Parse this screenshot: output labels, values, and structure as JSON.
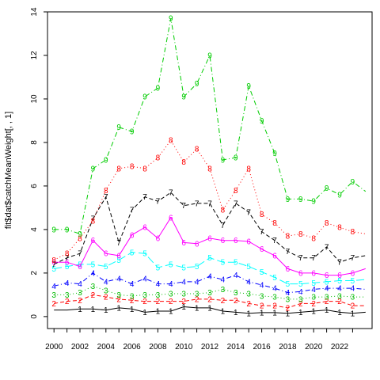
{
  "chart_data": {
    "type": "line",
    "title": "",
    "xlabel": "",
    "ylabel": "fit$dat$catchMeanWeight[, , 1]",
    "xlim": [
      1999.5,
      2024.5
    ],
    "ylim": [
      -0.55,
      14
    ],
    "x_ticks": [
      2000,
      2002,
      2004,
      2006,
      2008,
      2010,
      2012,
      2014,
      2016,
      2018,
      2020,
      2022
    ],
    "y_ticks": [
      0,
      2,
      4,
      6,
      8,
      10,
      12,
      14
    ],
    "x": [
      2000,
      2001,
      2002,
      2003,
      2004,
      2005,
      2006,
      2007,
      2008,
      2009,
      2010,
      2011,
      2012,
      2013,
      2014,
      2015,
      2016,
      2017,
      2018,
      2019,
      2020,
      2021,
      2022,
      2023,
      2024
    ],
    "series": [
      {
        "name": "1",
        "color": "#000000",
        "dash": "",
        "label_start": 2,
        "values": [
          0.3,
          0.3,
          0.35,
          0.35,
          0.3,
          0.4,
          0.35,
          0.2,
          0.25,
          0.25,
          0.45,
          0.4,
          0.4,
          0.25,
          0.2,
          0.15,
          0.18,
          0.18,
          0.15,
          0.2,
          0.25,
          0.3,
          0.2,
          0.15,
          0.2
        ]
      },
      {
        "name": "2",
        "color": "#ff0000",
        "dash": "5,3",
        "label_start": 0,
        "values": [
          0.6,
          0.7,
          0.75,
          1.0,
          0.9,
          0.8,
          0.75,
          0.7,
          0.7,
          0.7,
          0.7,
          0.8,
          0.8,
          0.75,
          0.75,
          0.6,
          0.5,
          0.5,
          0.4,
          0.6,
          0.6,
          0.7,
          0.7,
          0.5,
          0.5
        ]
      },
      {
        "name": "3",
        "color": "#00bb00",
        "dash": "1,3",
        "label_start": 0,
        "values": [
          1.0,
          1.0,
          1.1,
          1.4,
          1.2,
          1.0,
          0.95,
          1.0,
          1.0,
          1.05,
          1.05,
          1.05,
          1.1,
          1.25,
          1.1,
          1.05,
          0.95,
          0.9,
          0.8,
          0.8,
          0.9,
          0.9,
          0.95,
          0.9,
          0.9
        ]
      },
      {
        "name": "4",
        "color": "#0000ff",
        "dash": "6,3,1,3",
        "label_start": 0,
        "values": [
          1.4,
          1.55,
          1.5,
          2.0,
          1.6,
          1.75,
          1.5,
          1.75,
          1.5,
          1.5,
          1.6,
          1.6,
          1.85,
          1.7,
          1.9,
          1.6,
          1.45,
          1.3,
          1.1,
          1.15,
          1.25,
          1.3,
          1.3,
          1.3,
          1.25
        ]
      },
      {
        "name": "5",
        "color": "#00ffff",
        "dash": "10,4",
        "label_start": 0,
        "values": [
          2.2,
          2.3,
          2.4,
          2.4,
          2.3,
          2.6,
          2.95,
          2.9,
          2.25,
          2.4,
          2.25,
          2.3,
          2.7,
          2.5,
          2.5,
          2.3,
          2.05,
          1.8,
          1.5,
          1.5,
          1.55,
          1.6,
          1.65,
          1.65,
          1.7
        ]
      },
      {
        "name": "6",
        "color": "#ff00ff",
        "dash": "",
        "label_start": 0,
        "values": [
          2.5,
          2.5,
          2.3,
          3.5,
          2.9,
          2.8,
          3.75,
          4.1,
          3.6,
          4.55,
          3.4,
          3.35,
          3.6,
          3.5,
          3.5,
          3.45,
          3.1,
          2.8,
          2.2,
          2.0,
          2.0,
          1.9,
          1.9,
          2.0,
          2.2
        ]
      },
      {
        "name": "7",
        "color": "#000000",
        "dash": "5,3",
        "label_start": 0,
        "values": [
          2.4,
          2.7,
          2.9,
          4.5,
          5.5,
          3.4,
          4.9,
          5.5,
          5.3,
          5.7,
          5.1,
          5.2,
          5.2,
          4.2,
          5.2,
          4.8,
          3.9,
          3.5,
          3.0,
          2.7,
          2.7,
          3.2,
          2.5,
          2.7,
          2.8
        ]
      },
      {
        "name": "8",
        "color": "#ff0000",
        "dash": "1,3",
        "label_start": 0,
        "values": [
          2.6,
          2.9,
          3.6,
          4.4,
          5.8,
          6.8,
          6.9,
          6.8,
          7.3,
          8.1,
          7.1,
          7.7,
          6.8,
          4.9,
          5.8,
          6.8,
          4.7,
          4.3,
          3.7,
          3.8,
          3.6,
          4.3,
          4.1,
          3.9,
          3.8
        ]
      },
      {
        "name": "9",
        "color": "#00cc00",
        "dash": "6,3,1,3",
        "label_start": 0,
        "values": [
          4.0,
          4.0,
          3.8,
          6.8,
          7.2,
          8.7,
          8.5,
          10.1,
          10.5,
          13.7,
          10.1,
          10.7,
          12.0,
          7.2,
          7.3,
          10.6,
          9.0,
          7.5,
          5.4,
          5.4,
          5.3,
          5.9,
          5.6,
          6.2,
          5.75
        ]
      }
    ]
  }
}
